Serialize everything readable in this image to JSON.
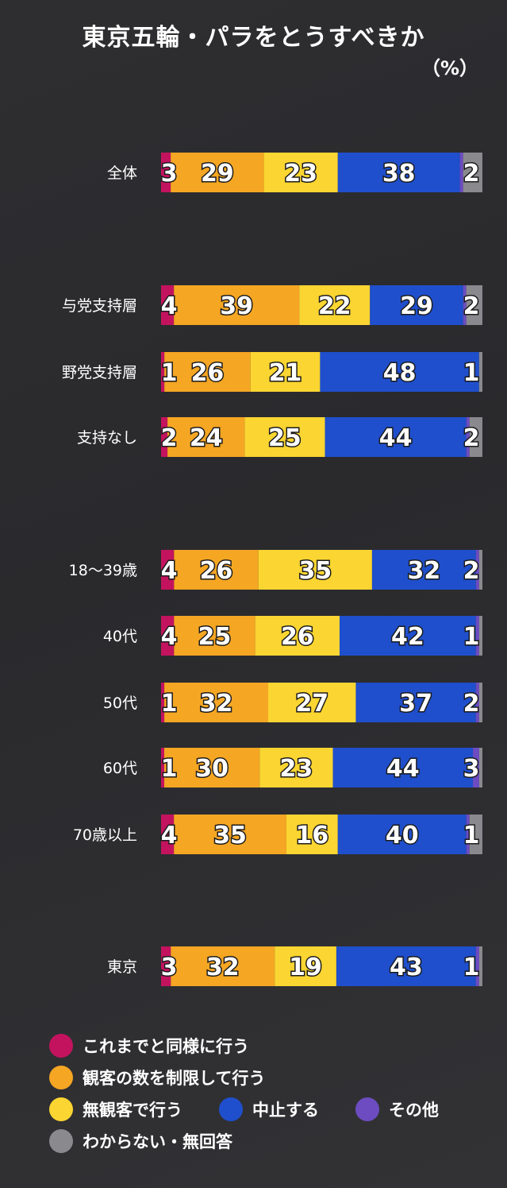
{
  "title": "東京五輪・パラをとうすべきか",
  "unit": "（%）",
  "colors": {
    "same": "#c3135f",
    "limited": "#f5a623",
    "no_spectators": "#fbd531",
    "cancel": "#1f4fcc",
    "other": "#6c4cc0",
    "unknown": "#8a8a8e"
  },
  "legend": [
    {
      "key": "same",
      "label": "これまでと同様に行う"
    },
    {
      "key": "limited",
      "label": "観客の数を制限して行う"
    },
    {
      "key": "no_spectators",
      "label": "無観客で行う"
    },
    {
      "key": "cancel",
      "label": "中止する"
    },
    {
      "key": "other",
      "label": "その他"
    },
    {
      "key": "unknown",
      "label": "わからない・無回答"
    }
  ],
  "chart_data": {
    "type": "bar",
    "orientation": "horizontal",
    "stacked": true,
    "title": "東京五輪・パラをとうすべきか",
    "unit": "（%）",
    "categories": [
      "全体",
      "与党支持層",
      "野党支持層",
      "支持なし",
      "18〜39歳",
      "40代",
      "50代",
      "60代",
      "70歳以上",
      "東京"
    ],
    "series": [
      {
        "name": "これまでと同様に行う",
        "key": "same",
        "values": [
          3,
          4,
          1,
          2,
          4,
          4,
          1,
          1,
          4,
          3
        ]
      },
      {
        "name": "観客の数を制限して行う",
        "key": "limited",
        "values": [
          29,
          39,
          26,
          24,
          26,
          25,
          32,
          30,
          35,
          32
        ]
      },
      {
        "name": "無観客で行う",
        "key": "no_spectators",
        "values": [
          23,
          22,
          21,
          25,
          35,
          26,
          27,
          23,
          16,
          19
        ]
      },
      {
        "name": "中止する",
        "key": "cancel",
        "values": [
          38,
          29,
          48,
          44,
          32,
          42,
          37,
          44,
          40,
          43
        ]
      },
      {
        "name": "その他",
        "key": "other",
        "values": [
          1,
          1,
          0,
          1,
          1,
          1,
          1,
          2,
          1,
          1
        ]
      },
      {
        "name": "わからない・無回答",
        "key": "unknown",
        "values": [
          6,
          5,
          1,
          4,
          1,
          1,
          1,
          1,
          4,
          1
        ]
      }
    ],
    "labels": [
      [
        "3",
        "29",
        "23",
        "38",
        "2"
      ],
      [
        "4",
        "39",
        "22",
        "29",
        "2"
      ],
      [
        "1",
        "26",
        "21",
        "48",
        "1"
      ],
      [
        "2",
        "24",
        "25",
        "44",
        "2"
      ],
      [
        "4",
        "26",
        "35",
        "32",
        "2"
      ],
      [
        "4",
        "25",
        "26",
        "42",
        "1"
      ],
      [
        "1",
        "32",
        "27",
        "37",
        "2"
      ],
      [
        "1",
        "30",
        "23",
        "44",
        "3"
      ],
      [
        "4",
        "35",
        "16",
        "40",
        "1"
      ],
      [
        "3",
        "32",
        "19",
        "43",
        "1"
      ]
    ],
    "xlim": [
      0,
      100
    ],
    "legend_position": "bottom"
  }
}
